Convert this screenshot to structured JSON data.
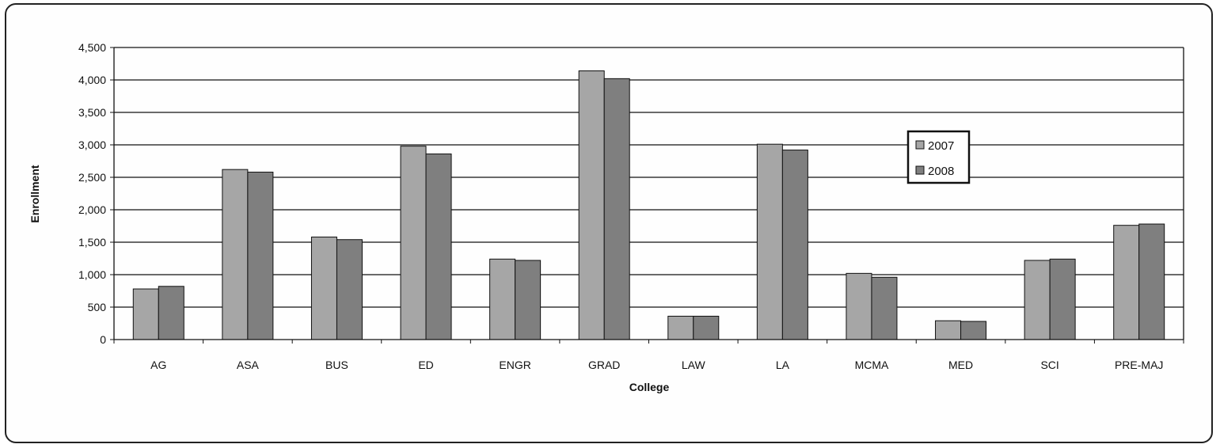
{
  "chart_data": {
    "type": "bar",
    "categories": [
      "AG",
      "ASA",
      "BUS",
      "ED",
      "ENGR",
      "GRAD",
      "LAW",
      "LA",
      "MCMA",
      "MED",
      "SCI",
      "PRE-MAJ"
    ],
    "series": [
      {
        "name": "2007",
        "values": [
          780,
          2620,
          1580,
          2980,
          1240,
          4140,
          360,
          3010,
          1020,
          290,
          1220,
          1760
        ],
        "color": "#a6a6a6"
      },
      {
        "name": "2008",
        "values": [
          820,
          2580,
          1540,
          2860,
          1220,
          4020,
          360,
          2920,
          960,
          280,
          1240,
          1780
        ],
        "color": "#7f7f7f"
      }
    ],
    "xlabel": "College",
    "ylabel": "Enrollment",
    "ylim": [
      0,
      4500
    ],
    "yticks": [
      0,
      500,
      1000,
      1500,
      2000,
      2500,
      3000,
      3500,
      4000,
      4500
    ],
    "ytick_labels": [
      "0",
      "500",
      "1,000",
      "1,500",
      "2,000",
      "2,500",
      "3,000",
      "3,500",
      "4,000",
      "4,500"
    ],
    "grid": true,
    "legend_position": "right"
  }
}
